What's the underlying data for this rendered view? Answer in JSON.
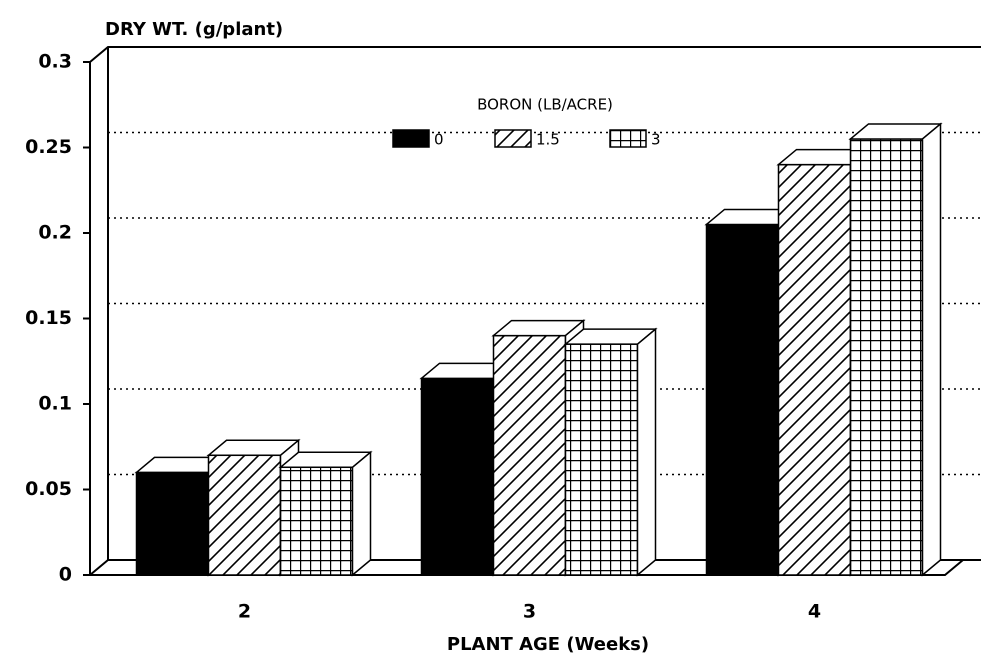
{
  "chart_data": {
    "type": "bar3d",
    "ylabel": "DRY WT. (g/plant)",
    "xlabel": "PLANT AGE (Weeks)",
    "legend_title": "BORON (LB/ACRE)",
    "categories": [
      "2",
      "3",
      "4"
    ],
    "series": [
      {
        "name": "0",
        "color": "#000000",
        "pattern": "solid",
        "values": [
          0.06,
          0.115,
          0.205
        ]
      },
      {
        "name": "1.5",
        "color": "#000000",
        "pattern": "hatch",
        "values": [
          0.07,
          0.14,
          0.24
        ]
      },
      {
        "name": "3",
        "color": "#000000",
        "pattern": "grid",
        "values": [
          0.063,
          0.135,
          0.255
        ]
      }
    ],
    "ylim": [
      0,
      0.3
    ],
    "yticks": [
      0,
      0.05,
      0.1,
      0.15,
      0.2,
      0.25,
      0.3
    ],
    "grid": true
  }
}
